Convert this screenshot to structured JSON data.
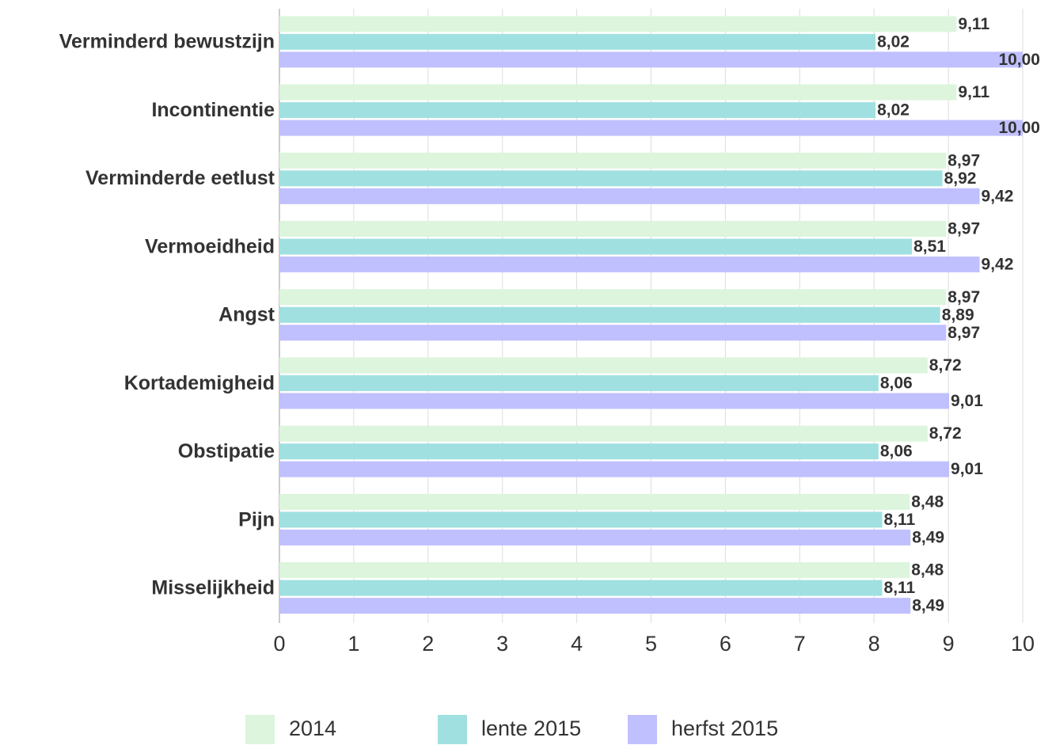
{
  "chart_data": {
    "type": "barh",
    "categories": [
      "Verminderd bewustzijn",
      "Incontinentie",
      "Verminderde eetlust",
      "Vermoeidheid",
      "Angst",
      "Kortademigheid",
      "Obstipatie",
      "Pijn",
      "Misselijkheid"
    ],
    "series": [
      {
        "name": "2014",
        "color": "#dcf5dc",
        "values": [
          9.11,
          9.11,
          8.97,
          8.97,
          8.97,
          8.72,
          8.72,
          8.48,
          8.48
        ],
        "value_labels": [
          "9,11",
          "9,11",
          "8,97",
          "8,97",
          "8,97",
          "8,72",
          "8,72",
          "8,48",
          "8,48"
        ]
      },
      {
        "name": "lente 2015",
        "color": "#a0e0e0",
        "values": [
          8.02,
          8.02,
          8.92,
          8.51,
          8.89,
          8.06,
          8.06,
          8.11,
          8.11
        ],
        "value_labels": [
          "8,02",
          "8,02",
          "8,92",
          "8,51",
          "8,89",
          "8,06",
          "8,06",
          "8,11",
          "8,11"
        ]
      },
      {
        "name": "herfst 2015",
        "color": "#c0c0ff",
        "values": [
          10,
          10,
          9.42,
          9.42,
          8.97,
          9.01,
          9.01,
          8.49,
          8.49
        ],
        "value_labels": [
          "10,00",
          "10,00",
          "9,42",
          "9,42",
          "8,97",
          "9,01",
          "9,01",
          "8,49",
          "8,49"
        ]
      }
    ],
    "xlim": [
      0,
      10
    ],
    "xticks": [
      0,
      1,
      2,
      3,
      4,
      5,
      6,
      7,
      8,
      9,
      10
    ],
    "grid": true,
    "legend": "bottom"
  }
}
